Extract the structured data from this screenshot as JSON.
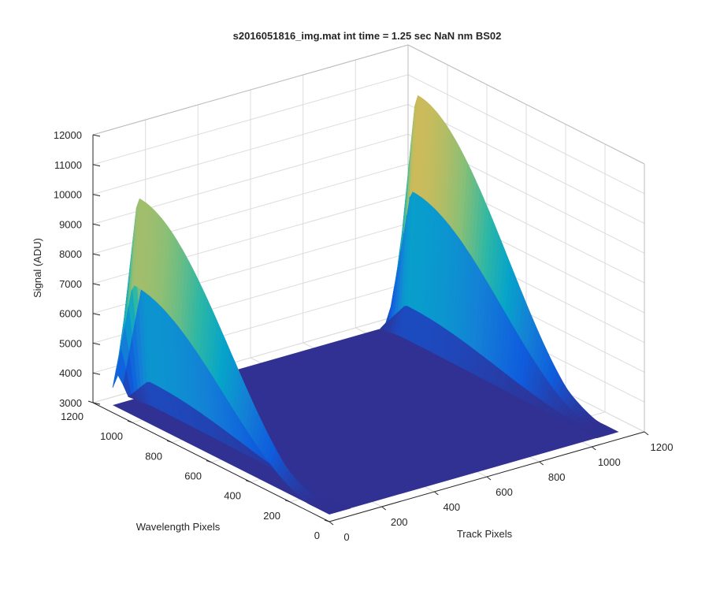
{
  "chart_data": {
    "type": "surface3d",
    "title": "s2016051816_img.mat int time = 1.25 sec  NaN nm BS02",
    "xlabel": "Track Pixels",
    "ylabel": "Wavelength Pixels",
    "zlabel": "Signal (ADU)",
    "xlim": [
      0,
      1200
    ],
    "ylim": [
      0,
      1200
    ],
    "zlim": [
      3000,
      12000
    ],
    "x_ticks": [
      "0",
      "200",
      "400",
      "600",
      "800",
      "1000",
      "1200"
    ],
    "y_ticks": [
      "0",
      "200",
      "400",
      "600",
      "800",
      "1000",
      "1200"
    ],
    "z_ticks": [
      "3000",
      "4000",
      "5000",
      "6000",
      "7000",
      "8000",
      "9000",
      "10000",
      "11000",
      "12000"
    ],
    "grid": true,
    "colormap": "parula",
    "colors": [
      "#352a87",
      "#0f5cdd",
      "#1481d6",
      "#06a4ca",
      "#2eb7a4",
      "#87bf77",
      "#d1bb59",
      "#fec832",
      "#f9fb0e"
    ],
    "surface": {
      "track_range": [
        0,
        1100
      ],
      "wavelength_range": [
        0,
        1100
      ],
      "baseline": 3100,
      "background": 3250,
      "bands": [
        {
          "name": "left-band",
          "track_center": 20,
          "track_width": 40,
          "peak_wavelength": 1000,
          "peak_signal": 10500
        },
        {
          "name": "right-band",
          "track_center": 1080,
          "track_width": 40,
          "peak_wavelength": 1000,
          "peak_signal": 11300
        }
      ]
    }
  }
}
